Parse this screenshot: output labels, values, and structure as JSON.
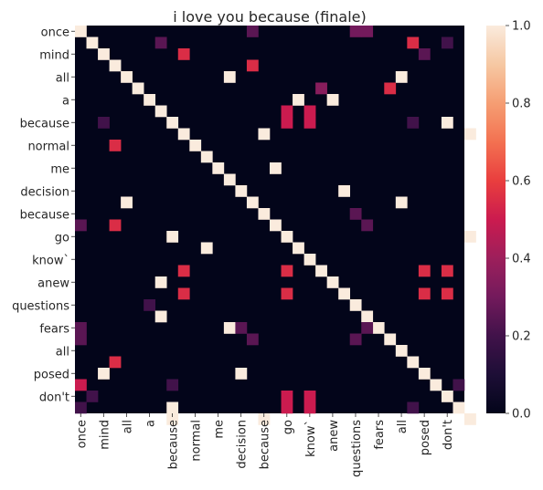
{
  "chart_data": {
    "type": "heatmap",
    "title": "i love you because (finale)",
    "rows": [
      "once",
      "",
      "mind",
      "",
      "all",
      "",
      "a",
      "",
      "because",
      "",
      "normal",
      "",
      "me",
      "",
      "decision",
      "",
      "because",
      "",
      "go",
      "",
      "know`",
      "",
      "anew",
      "",
      "questions",
      "",
      "fears",
      "",
      "all",
      "",
      "posed",
      "",
      "don't",
      ""
    ],
    "x_tick_labels": [
      "once",
      "mind",
      "all",
      "a",
      "because",
      "normal",
      "me",
      "decision",
      "because",
      "go",
      "know`",
      "anew",
      "questions",
      "fears",
      "all",
      "posed",
      "don't"
    ],
    "y_tick_labels": [
      "once",
      "mind",
      "all",
      "a",
      "because",
      "normal",
      "me",
      "decision",
      "because",
      "go",
      "know`",
      "anew",
      "questions",
      "fears",
      "all",
      "posed",
      "don't"
    ],
    "colorbar": {
      "min": 0.0,
      "max": 1.0,
      "ticks": [
        "0.0",
        "0.2",
        "0.4",
        "0.6",
        "0.8",
        "1.0"
      ],
      "colormap": "rocket"
    },
    "cells": [
      {
        "r": 0,
        "c": 0,
        "v": 1.0
      },
      {
        "r": 0,
        "c": 15,
        "v": 0.25
      },
      {
        "r": 0,
        "c": 24,
        "v": 0.3
      },
      {
        "r": 0,
        "c": 25,
        "v": 0.3
      },
      {
        "r": 1,
        "c": 1,
        "v": 1.0
      },
      {
        "r": 1,
        "c": 7,
        "v": 0.25
      },
      {
        "r": 1,
        "c": 29,
        "v": 0.55
      },
      {
        "r": 1,
        "c": 32,
        "v": 0.2
      },
      {
        "r": 2,
        "c": 2,
        "v": 1.0
      },
      {
        "r": 2,
        "c": 9,
        "v": 0.55
      },
      {
        "r": 2,
        "c": 30,
        "v": 0.25
      },
      {
        "r": 3,
        "c": 3,
        "v": 1.0
      },
      {
        "r": 3,
        "c": 15,
        "v": 0.55
      },
      {
        "r": 4,
        "c": 4,
        "v": 1.0
      },
      {
        "r": 4,
        "c": 13,
        "v": 1.0
      },
      {
        "r": 4,
        "c": 28,
        "v": 1.0
      },
      {
        "r": 5,
        "c": 5,
        "v": 1.0
      },
      {
        "r": 5,
        "c": 21,
        "v": 0.35
      },
      {
        "r": 5,
        "c": 27,
        "v": 0.55
      },
      {
        "r": 6,
        "c": 6,
        "v": 1.0
      },
      {
        "r": 6,
        "c": 19,
        "v": 1.0
      },
      {
        "r": 6,
        "c": 22,
        "v": 1.0
      },
      {
        "r": 7,
        "c": 7,
        "v": 1.0
      },
      {
        "r": 7,
        "c": 18,
        "v": 0.5
      },
      {
        "r": 7,
        "c": 20,
        "v": 0.5
      },
      {
        "r": 8,
        "c": 8,
        "v": 1.0
      },
      {
        "r": 8,
        "c": 2,
        "v": 0.2
      },
      {
        "r": 8,
        "c": 18,
        "v": 0.5
      },
      {
        "r": 8,
        "c": 20,
        "v": 0.5
      },
      {
        "r": 8,
        "c": 29,
        "v": 0.2
      },
      {
        "r": 8,
        "c": 32,
        "v": 1.0
      },
      {
        "r": 9,
        "c": 9,
        "v": 1.0
      },
      {
        "r": 9,
        "c": 16,
        "v": 1.0
      },
      {
        "r": 9,
        "c": 34,
        "v": 1.0
      },
      {
        "r": 10,
        "c": 10,
        "v": 1.0
      },
      {
        "r": 10,
        "c": 3,
        "v": 0.55
      },
      {
        "r": 11,
        "c": 11,
        "v": 1.0
      },
      {
        "r": 12,
        "c": 12,
        "v": 1.0
      },
      {
        "r": 12,
        "c": 17,
        "v": 1.0
      },
      {
        "r": 13,
        "c": 13,
        "v": 1.0
      },
      {
        "r": 14,
        "c": 14,
        "v": 1.0
      },
      {
        "r": 14,
        "c": 23,
        "v": 1.0
      },
      {
        "r": 15,
        "c": 15,
        "v": 1.0
      },
      {
        "r": 15,
        "c": 4,
        "v": 1.0
      },
      {
        "r": 15,
        "c": 28,
        "v": 1.0
      },
      {
        "r": 16,
        "c": 16,
        "v": 1.0
      },
      {
        "r": 16,
        "c": 24,
        "v": 0.25
      },
      {
        "r": 17,
        "c": 17,
        "v": 1.0
      },
      {
        "r": 17,
        "c": 0,
        "v": 0.25
      },
      {
        "r": 17,
        "c": 3,
        "v": 0.55
      },
      {
        "r": 17,
        "c": 25,
        "v": 0.25
      },
      {
        "r": 18,
        "c": 18,
        "v": 1.0
      },
      {
        "r": 18,
        "c": 8,
        "v": 1.0
      },
      {
        "r": 18,
        "c": 34,
        "v": 1.0
      },
      {
        "r": 19,
        "c": 19,
        "v": 1.0
      },
      {
        "r": 19,
        "c": 11,
        "v": 1.0
      },
      {
        "r": 20,
        "c": 20,
        "v": 1.0
      },
      {
        "r": 21,
        "c": 21,
        "v": 1.0
      },
      {
        "r": 21,
        "c": 9,
        "v": 0.55
      },
      {
        "r": 21,
        "c": 18,
        "v": 0.55
      },
      {
        "r": 21,
        "c": 30,
        "v": 0.55
      },
      {
        "r": 21,
        "c": 32,
        "v": 0.55
      },
      {
        "r": 22,
        "c": 22,
        "v": 1.0
      },
      {
        "r": 22,
        "c": 7,
        "v": 1.0
      },
      {
        "r": 23,
        "c": 23,
        "v": 1.0
      },
      {
        "r": 23,
        "c": 9,
        "v": 0.55
      },
      {
        "r": 23,
        "c": 18,
        "v": 0.55
      },
      {
        "r": 23,
        "c": 30,
        "v": 0.55
      },
      {
        "r": 23,
        "c": 32,
        "v": 0.55
      },
      {
        "r": 24,
        "c": 24,
        "v": 1.0
      },
      {
        "r": 24,
        "c": 6,
        "v": 0.2
      },
      {
        "r": 25,
        "c": 25,
        "v": 1.0
      },
      {
        "r": 25,
        "c": 7,
        "v": 1.0
      },
      {
        "r": 26,
        "c": 26,
        "v": 1.0
      },
      {
        "r": 26,
        "c": 13,
        "v": 1.0
      },
      {
        "r": 26,
        "c": 0,
        "v": 0.25
      },
      {
        "r": 26,
        "c": 14,
        "v": 0.25
      },
      {
        "r": 26,
        "c": 25,
        "v": 0.25
      },
      {
        "r": 27,
        "c": 27,
        "v": 1.0
      },
      {
        "r": 27,
        "c": 0,
        "v": 0.25
      },
      {
        "r": 27,
        "c": 15,
        "v": 0.25
      },
      {
        "r": 27,
        "c": 24,
        "v": 0.25
      },
      {
        "r": 28,
        "c": 28,
        "v": 1.0
      },
      {
        "r": 29,
        "c": 29,
        "v": 1.0
      },
      {
        "r": 29,
        "c": 3,
        "v": 0.55
      },
      {
        "r": 30,
        "c": 30,
        "v": 1.0
      },
      {
        "r": 30,
        "c": 2,
        "v": 1.0
      },
      {
        "r": 30,
        "c": 14,
        "v": 1.0
      },
      {
        "r": 31,
        "c": 31,
        "v": 1.0
      },
      {
        "r": 31,
        "c": 0,
        "v": 0.5
      },
      {
        "r": 31,
        "c": 8,
        "v": 0.2
      },
      {
        "r": 31,
        "c": 33,
        "v": 0.2
      },
      {
        "r": 32,
        "c": 32,
        "v": 1.0
      },
      {
        "r": 32,
        "c": 1,
        "v": 0.2
      },
      {
        "r": 32,
        "c": 18,
        "v": 0.5
      },
      {
        "r": 32,
        "c": 20,
        "v": 0.5
      },
      {
        "r": 33,
        "c": 33,
        "v": 1.0
      },
      {
        "r": 33,
        "c": 0,
        "v": 0.2
      },
      {
        "r": 33,
        "c": 8,
        "v": 1.0
      },
      {
        "r": 33,
        "c": 18,
        "v": 0.5
      },
      {
        "r": 33,
        "c": 20,
        "v": 0.5
      },
      {
        "r": 33,
        "c": 29,
        "v": 0.2
      },
      {
        "r": 34,
        "c": 34,
        "v": 1.0
      },
      {
        "r": 34,
        "c": 8,
        "v": 1.0
      },
      {
        "r": 34,
        "c": 16,
        "v": 1.0
      }
    ]
  }
}
